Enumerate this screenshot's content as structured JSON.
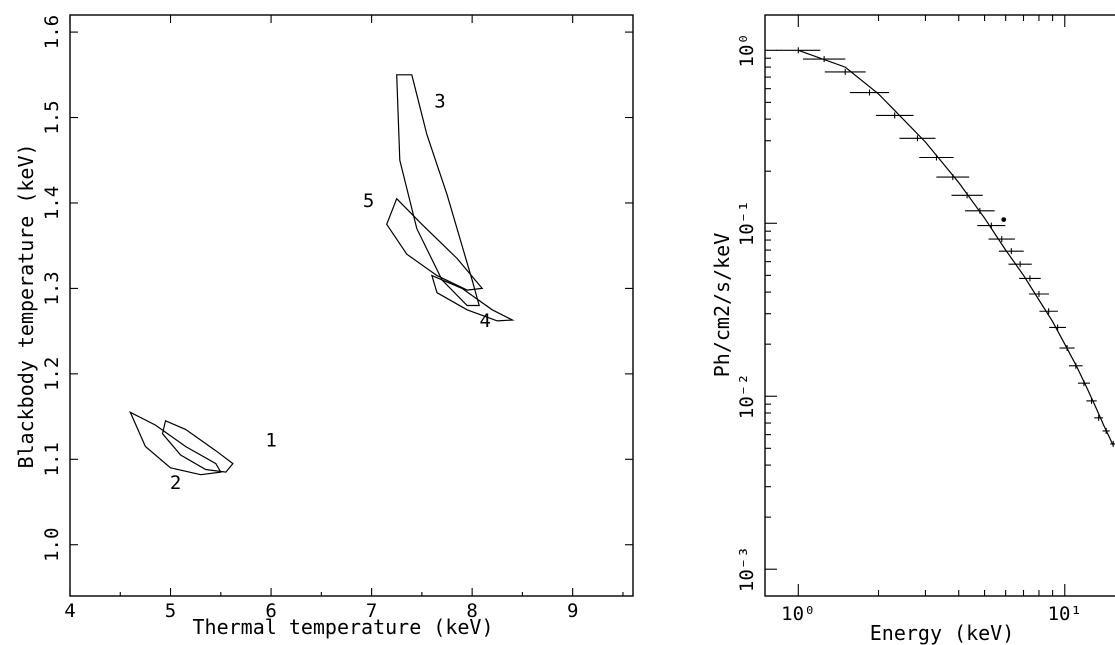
{
  "chart_data": [
    {
      "type": "contour",
      "xlabel": "Thermal temperature (keV)",
      "ylabel": "Blackbody temperature (keV)",
      "xlim": [
        4,
        9.6
      ],
      "ylim": [
        0.94,
        1.62
      ],
      "xticks": [
        "4",
        "5",
        "6",
        "7",
        "8",
        "9"
      ],
      "yticks": [
        "1.0",
        "1.1",
        "1.2",
        "1.3",
        "1.4",
        "1.5",
        "1.6"
      ],
      "contours": [
        {
          "name": "1",
          "label_pos": [
            6.0,
            1.115
          ],
          "points": [
            [
              4.95,
              1.145
            ],
            [
              5.15,
              1.135
            ],
            [
              5.45,
              1.11
            ],
            [
              5.62,
              1.095
            ],
            [
              5.55,
              1.085
            ],
            [
              5.35,
              1.088
            ],
            [
              5.1,
              1.105
            ],
            [
              4.92,
              1.13
            ],
            [
              4.95,
              1.145
            ]
          ]
        },
        {
          "name": "2",
          "label_pos": [
            5.05,
            1.065
          ],
          "points": [
            [
              4.6,
              1.155
            ],
            [
              4.85,
              1.14
            ],
            [
              5.15,
              1.115
            ],
            [
              5.45,
              1.095
            ],
            [
              5.5,
              1.085
            ],
            [
              5.3,
              1.082
            ],
            [
              5.0,
              1.09
            ],
            [
              4.75,
              1.115
            ],
            [
              4.6,
              1.155
            ]
          ]
        },
        {
          "name": "3",
          "label_pos": [
            7.68,
            1.512
          ],
          "points": [
            [
              7.4,
              1.55
            ],
            [
              7.55,
              1.48
            ],
            [
              7.75,
              1.41
            ],
            [
              8.0,
              1.31
            ],
            [
              8.07,
              1.28
            ],
            [
              7.95,
              1.28
            ],
            [
              7.7,
              1.31
            ],
            [
              7.45,
              1.37
            ],
            [
              7.28,
              1.45
            ],
            [
              7.25,
              1.55
            ],
            [
              7.4,
              1.55
            ]
          ]
        },
        {
          "name": "4",
          "label_pos": [
            8.13,
            1.255
          ],
          "points": [
            [
              7.6,
              1.315
            ],
            [
              7.9,
              1.3
            ],
            [
              8.2,
              1.275
            ],
            [
              8.4,
              1.263
            ],
            [
              8.25,
              1.262
            ],
            [
              7.95,
              1.275
            ],
            [
              7.65,
              1.295
            ],
            [
              7.6,
              1.315
            ]
          ]
        },
        {
          "name": "5",
          "label_pos": [
            6.97,
            1.395
          ],
          "points": [
            [
              7.25,
              1.405
            ],
            [
              7.5,
              1.375
            ],
            [
              7.85,
              1.335
            ],
            [
              8.1,
              1.3
            ],
            [
              7.95,
              1.298
            ],
            [
              7.65,
              1.315
            ],
            [
              7.35,
              1.34
            ],
            [
              7.15,
              1.375
            ],
            [
              7.25,
              1.405
            ]
          ]
        }
      ]
    },
    {
      "type": "line",
      "xlabel": "Energy (keV)",
      "ylabel": "Ph/cm2/s/keV",
      "xscale": "log",
      "yscale": "log",
      "xlim": [
        0.75,
        20
      ],
      "ylim": [
        0.0007,
        1.6
      ],
      "xticks": [
        "10⁰",
        "10¹"
      ],
      "yticks": [
        "10⁰",
        "10⁻¹",
        "10⁻²",
        "10⁻³"
      ],
      "series": [
        {
          "data_points": [
            [
              1.0,
              1.0
            ],
            [
              1.25,
              0.89
            ],
            [
              1.5,
              0.75
            ],
            [
              1.85,
              0.57
            ],
            [
              2.3,
              0.42
            ],
            [
              2.8,
              0.31
            ],
            [
              3.3,
              0.24
            ],
            [
              3.8,
              0.185
            ],
            [
              4.3,
              0.145
            ],
            [
              4.8,
              0.118
            ],
            [
              5.3,
              0.097
            ],
            [
              5.8,
              0.081
            ],
            [
              6.3,
              0.069
            ],
            [
              6.8,
              0.058
            ],
            [
              7.4,
              0.048
            ],
            [
              8.0,
              0.039
            ],
            [
              8.7,
              0.031
            ],
            [
              9.4,
              0.025
            ],
            [
              10.2,
              0.019
            ],
            [
              11.0,
              0.015
            ],
            [
              11.8,
              0.0119
            ],
            [
              12.6,
              0.0094
            ],
            [
              13.4,
              0.0075
            ],
            [
              14.3,
              0.0063
            ],
            [
              15.2,
              0.0053
            ]
          ],
          "model_curve": [
            [
              1.0,
              1.0
            ],
            [
              1.5,
              0.8
            ],
            [
              2.0,
              0.56
            ],
            [
              3.0,
              0.295
            ],
            [
              4.0,
              0.172
            ],
            [
              5.0,
              0.107
            ],
            [
              6.0,
              0.07
            ],
            [
              7.0,
              0.05
            ],
            [
              8.0,
              0.036
            ],
            [
              9.0,
              0.027
            ],
            [
              10.0,
              0.02
            ],
            [
              11.0,
              0.0152
            ],
            [
              12.0,
              0.0115
            ],
            [
              13.0,
              0.0088
            ],
            [
              14.0,
              0.0068
            ],
            [
              15.2,
              0.0052
            ]
          ]
        }
      ],
      "annotations": [
        [
          5.9,
          0.105
        ]
      ]
    }
  ],
  "left_axes": {
    "xlabel": "Thermal temperature (keV)",
    "ylabel": "Blackbody temperature (keV)"
  },
  "right_axes": {
    "xlabel": "Energy (keV)",
    "ylabel": "Ph/cm2/s/keV"
  }
}
